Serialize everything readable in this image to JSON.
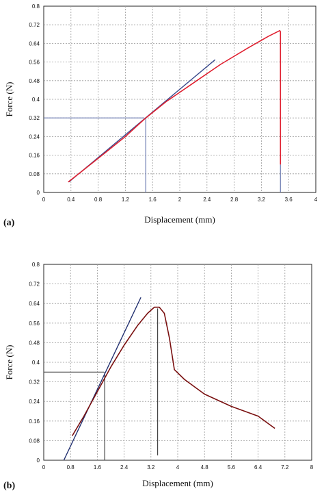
{
  "chart_data": [
    {
      "panel_label": "(a)",
      "type": "line",
      "xlabel": "Displacement (mm)",
      "ylabel": "Force (N)",
      "xlim": [
        0,
        4
      ],
      "ylim": [
        0,
        0.8
      ],
      "xticks": [
        "0",
        "0.4",
        "0.8",
        "1.2",
        "1.6",
        "2",
        "2.4",
        "2.8",
        "3.2",
        "3.6",
        "4"
      ],
      "yticks": [
        "0",
        "0.08",
        "0.16",
        "0.24",
        "0.32",
        "0.4",
        "0.48",
        "0.56",
        "0.64",
        "0.72",
        "0.8"
      ],
      "grid": true,
      "curve": {
        "color": "#e02030",
        "x": [
          0.36,
          0.6,
          0.9,
          1.2,
          1.48,
          1.8,
          2.2,
          2.6,
          3.0,
          3.3,
          3.47,
          3.48,
          3.48
        ],
        "y": [
          0.045,
          0.1,
          0.17,
          0.24,
          0.315,
          0.39,
          0.47,
          0.55,
          0.62,
          0.67,
          0.695,
          0.69,
          0.12
        ]
      },
      "tangent": {
        "color": "#3a4a8c",
        "x": [
          0.37,
          2.52
        ],
        "y": [
          0.045,
          0.57
        ]
      },
      "construction": {
        "color": "#6a7ab0",
        "horizontal": {
          "y": 0.32,
          "x": [
            0,
            1.48
          ]
        },
        "vertical": {
          "x": 1.5,
          "y": [
            0,
            0.32
          ]
        },
        "drop": {
          "x": 3.48,
          "y": [
            0,
            0.12
          ]
        }
      }
    },
    {
      "panel_label": "(b)",
      "type": "line",
      "xlabel": "Displacement (mm)",
      "ylabel": "Force (N)",
      "xlim": [
        0,
        8
      ],
      "ylim": [
        0,
        0.8
      ],
      "xticks": [
        "0",
        "0.8",
        "1.6",
        "2.4",
        "3.2",
        "4",
        "4.8",
        "5.6",
        "6.4",
        "7.2",
        "8"
      ],
      "yticks": [
        "0",
        "0.08",
        "0.16",
        "0.24",
        "0.32",
        "0.4",
        "0.48",
        "0.56",
        "0.64",
        "0.72",
        "0.8"
      ],
      "grid": true,
      "curve": {
        "color": "#7a1010",
        "x": [
          0.85,
          1.2,
          1.6,
          2.0,
          2.4,
          2.8,
          3.1,
          3.3,
          3.45,
          3.6,
          3.75,
          3.9,
          4.2,
          4.8,
          5.6,
          6.4,
          6.9
        ],
        "y": [
          0.1,
          0.18,
          0.28,
          0.38,
          0.47,
          0.55,
          0.6,
          0.625,
          0.625,
          0.6,
          0.5,
          0.37,
          0.33,
          0.27,
          0.22,
          0.18,
          0.13
        ]
      },
      "tangent": {
        "color": "#223070",
        "x": [
          0.6,
          2.9
        ],
        "y": [
          0.0,
          0.665
        ]
      },
      "construction": {
        "color": "#444444",
        "horizontal": {
          "y": 0.36,
          "x": [
            0,
            1.8
          ]
        },
        "vertical": {
          "x": 1.82,
          "y": [
            0,
            0.36
          ]
        },
        "drop": {
          "x": 3.4,
          "y": [
            0.02,
            0.62
          ]
        }
      }
    }
  ]
}
